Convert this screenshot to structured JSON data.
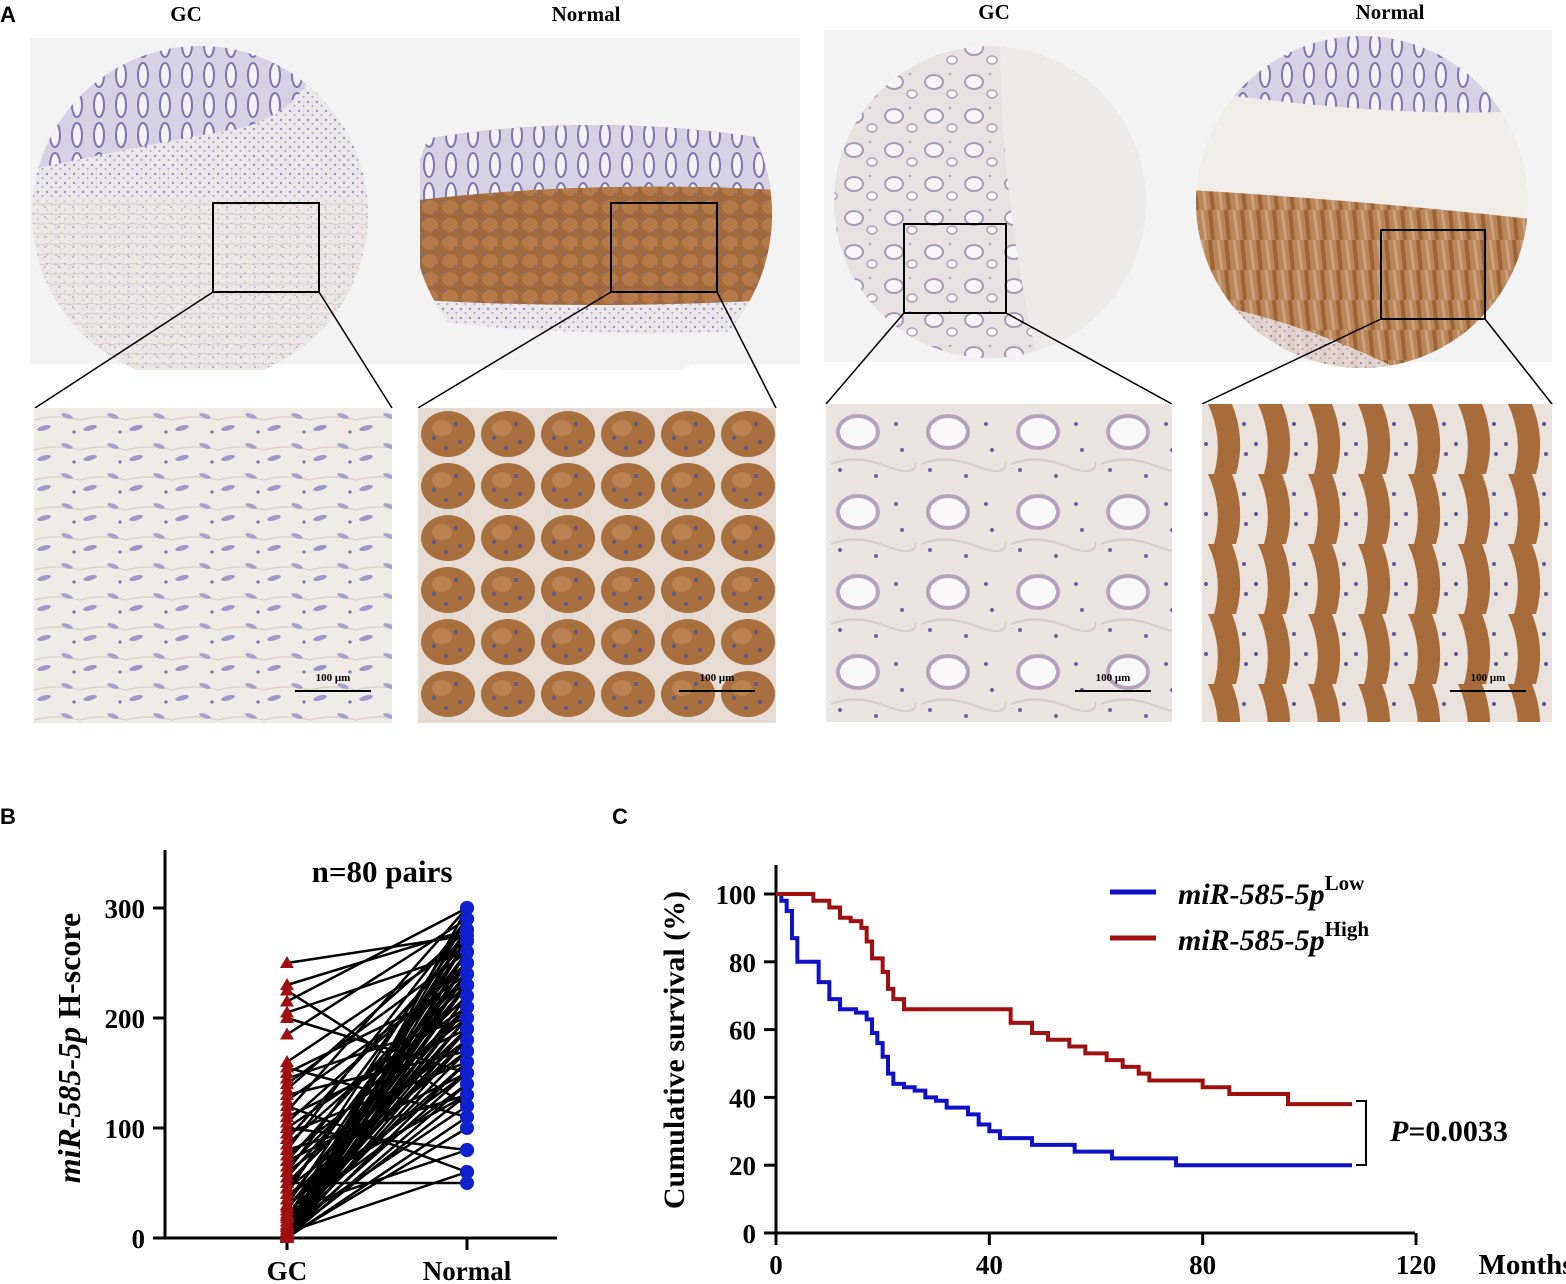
{
  "panel_a": {
    "letter": "A",
    "left_pair": {
      "gc_label": "GC",
      "normal_label": "Normal"
    },
    "right_pair": {
      "gc_label": "GC",
      "normal_label": "Normal"
    },
    "scale_label": "100 μm"
  },
  "panel_b": {
    "letter": "B",
    "annotation": "n=80 pairs",
    "ylabel_italic": "miR-585-5p",
    "ylabel_rest": " H-score",
    "y_ticks": [
      "0",
      "100",
      "200",
      "300"
    ],
    "x_ticks": [
      "GC",
      "Normal"
    ]
  },
  "panel_c": {
    "letter": "C",
    "ylabel": "Cumulative survival (%)",
    "x_unit": "Months",
    "x_ticks": [
      "0",
      "40",
      "80",
      "120"
    ],
    "y_ticks": [
      "0",
      "20",
      "40",
      "60",
      "80",
      "100"
    ],
    "legend": [
      {
        "italic": "miR-585-5p",
        "sup": "Low"
      },
      {
        "italic": "miR-585-5p",
        "sup": "High"
      }
    ],
    "p_italic": "P",
    "p_rest": "=0.0033"
  },
  "colors": {
    "low": "#1010c8",
    "high": "#a01010",
    "gc_marker": "#a01010",
    "normal_marker": "#1020d0",
    "stain_brown": "#b07848",
    "stain_purple": "#8a86b8"
  },
  "chart_data": [
    {
      "type": "line",
      "panel": "B",
      "x": [
        "GC",
        "Normal"
      ],
      "ylim": [
        0,
        300
      ],
      "series": [],
      "pairs": [
        [
          250,
          275
        ],
        [
          230,
          280
        ],
        [
          225,
          120
        ],
        [
          215,
          300
        ],
        [
          205,
          260
        ],
        [
          200,
          150
        ],
        [
          185,
          290
        ],
        [
          160,
          270
        ],
        [
          155,
          110
        ],
        [
          150,
          230
        ],
        [
          145,
          200
        ],
        [
          140,
          260
        ],
        [
          135,
          280
        ],
        [
          130,
          170
        ],
        [
          125,
          240
        ],
        [
          120,
          60
        ],
        [
          115,
          300
        ],
        [
          110,
          190
        ],
        [
          105,
          250
        ],
        [
          100,
          210
        ],
        [
          100,
          80
        ],
        [
          95,
          160
        ],
        [
          90,
          270
        ],
        [
          85,
          230
        ],
        [
          80,
          130
        ],
        [
          80,
          290
        ],
        [
          75,
          200
        ],
        [
          70,
          250
        ],
        [
          70,
          150
        ],
        [
          65,
          220
        ],
        [
          60,
          280
        ],
        [
          60,
          180
        ],
        [
          55,
          240
        ],
        [
          50,
          50
        ],
        [
          50,
          210
        ],
        [
          45,
          260
        ],
        [
          45,
          170
        ],
        [
          40,
          290
        ],
        [
          40,
          130
        ],
        [
          35,
          230
        ],
        [
          35,
          190
        ],
        [
          30,
          270
        ],
        [
          30,
          150
        ],
        [
          28,
          210
        ],
        [
          25,
          250
        ],
        [
          25,
          80
        ],
        [
          22,
          180
        ],
        [
          20,
          240
        ],
        [
          20,
          140
        ],
        [
          18,
          280
        ],
        [
          15,
          200
        ],
        [
          15,
          160
        ],
        [
          12,
          230
        ],
        [
          12,
          260
        ],
        [
          10,
          190
        ],
        [
          10,
          120
        ],
        [
          8,
          250
        ],
        [
          8,
          210
        ],
        [
          6,
          170
        ],
        [
          6,
          290
        ],
        [
          5,
          60
        ],
        [
          5,
          220
        ],
        [
          4,
          150
        ],
        [
          4,
          270
        ],
        [
          3,
          200
        ],
        [
          3,
          240
        ],
        [
          2,
          180
        ],
        [
          2,
          130
        ],
        [
          2,
          260
        ],
        [
          1,
          210
        ],
        [
          1,
          100
        ],
        [
          1,
          230
        ],
        [
          0,
          190
        ],
        [
          0,
          280
        ],
        [
          0,
          160
        ],
        [
          0,
          250
        ],
        [
          0,
          140
        ],
        [
          0,
          220
        ],
        [
          0,
          110
        ],
        [
          0,
          300
        ]
      ]
    },
    {
      "type": "line",
      "panel": "C",
      "xlim": [
        0,
        120
      ],
      "ylim": [
        0,
        100
      ],
      "series": [
        {
          "name": "miR-585-5p Low",
          "points": [
            [
              0,
              100
            ],
            [
              1,
              98
            ],
            [
              2,
              95
            ],
            [
              3,
              87
            ],
            [
              4,
              80
            ],
            [
              7,
              80
            ],
            [
              8,
              74
            ],
            [
              10,
              69
            ],
            [
              12,
              66
            ],
            [
              15,
              65
            ],
            [
              17,
              63
            ],
            [
              18,
              59
            ],
            [
              19,
              56
            ],
            [
              20,
              52
            ],
            [
              21,
              47
            ],
            [
              22,
              44
            ],
            [
              24,
              43
            ],
            [
              26,
              42
            ],
            [
              28,
              40
            ],
            [
              30,
              39
            ],
            [
              32,
              37
            ],
            [
              36,
              35
            ],
            [
              38,
              32
            ],
            [
              40,
              30
            ],
            [
              42,
              28
            ],
            [
              46,
              28
            ],
            [
              48,
              26
            ],
            [
              53,
              26
            ],
            [
              56,
              24
            ],
            [
              60,
              24
            ],
            [
              63,
              22
            ],
            [
              74,
              22
            ],
            [
              75,
              20
            ],
            [
              108,
              20
            ]
          ]
        },
        {
          "name": "miR-585-5p High",
          "points": [
            [
              0,
              100
            ],
            [
              5,
              100
            ],
            [
              7,
              98
            ],
            [
              10,
              96
            ],
            [
              12,
              93
            ],
            [
              14,
              92
            ],
            [
              16,
              90
            ],
            [
              17,
              86
            ],
            [
              18,
              81
            ],
            [
              20,
              77
            ],
            [
              21,
              72
            ],
            [
              22,
              69
            ],
            [
              24,
              66
            ],
            [
              42,
              66
            ],
            [
              44,
              62
            ],
            [
              48,
              59
            ],
            [
              51,
              57
            ],
            [
              55,
              55
            ],
            [
              58,
              53
            ],
            [
              62,
              51
            ],
            [
              65,
              49
            ],
            [
              68,
              47
            ],
            [
              70,
              45
            ],
            [
              76,
              45
            ],
            [
              80,
              43
            ],
            [
              85,
              41
            ],
            [
              95,
              41
            ],
            [
              96,
              38
            ],
            [
              108,
              38
            ]
          ]
        }
      ],
      "p_value": "P=0.0033"
    }
  ]
}
